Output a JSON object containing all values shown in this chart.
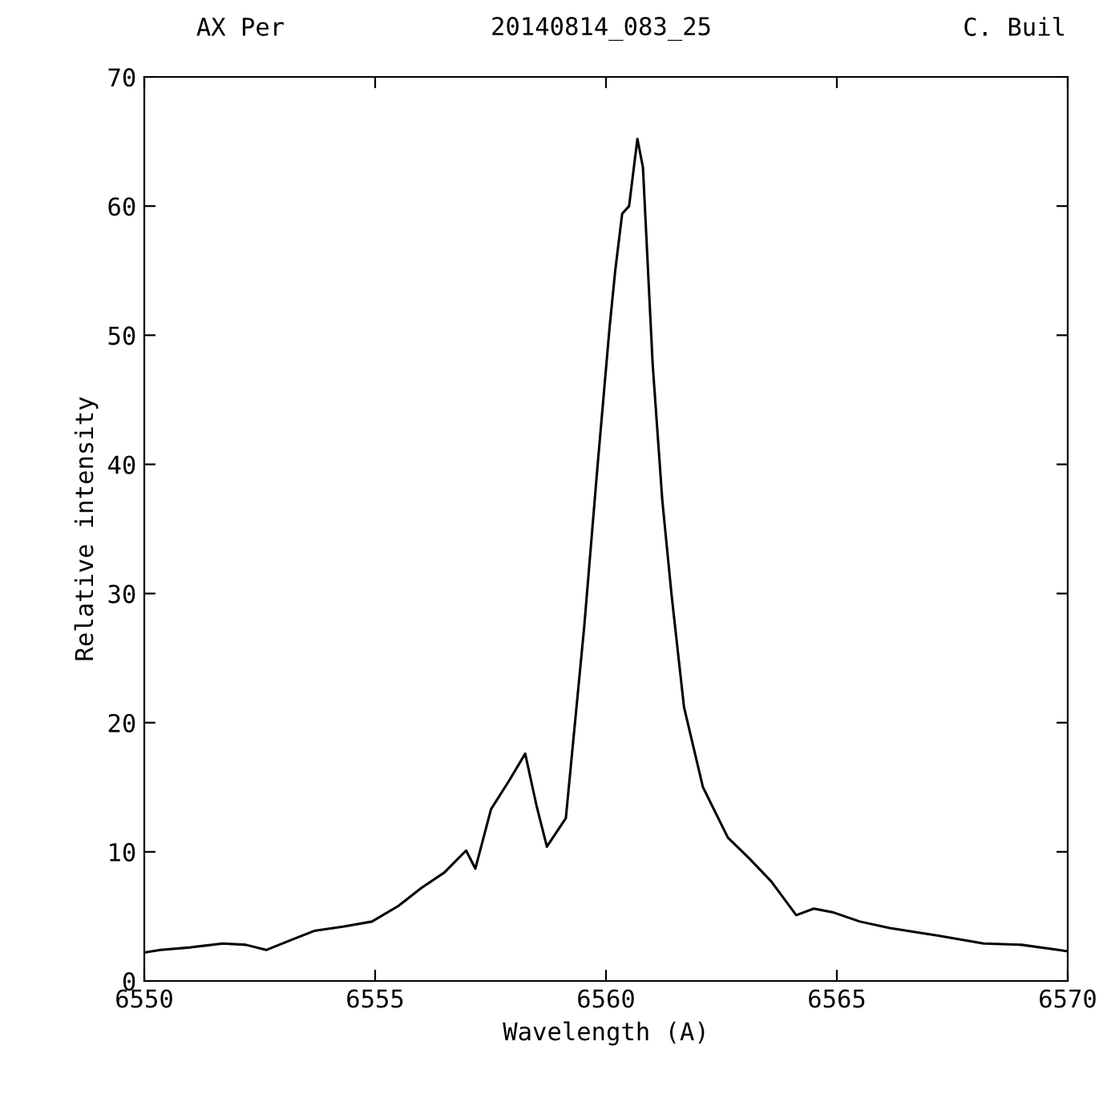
{
  "chart_data": {
    "type": "line",
    "title": "AX Per",
    "subtitle": "20140814_083_25",
    "annotations": [
      "C. Buil"
    ],
    "xlabel": "Wavelength (A)",
    "ylabel": "Relative intensity",
    "xlim": [
      6550,
      6570
    ],
    "xticks": [
      6550,
      6555,
      6560,
      6565,
      6570
    ],
    "ylim": [
      0,
      70
    ],
    "yticks": [
      0,
      10,
      20,
      30,
      40,
      50,
      60,
      70
    ],
    "grid": false,
    "legend": false,
    "series": [
      {
        "color": "#000000",
        "x": [
          6550.0,
          6550.35,
          6551.0,
          6551.7,
          6552.2,
          6552.64,
          6553.2,
          6553.7,
          6554.3,
          6554.93,
          6555.5,
          6556.0,
          6556.5,
          6556.97,
          6557.17,
          6557.51,
          6557.9,
          6558.25,
          6558.5,
          6558.72,
          6559.13,
          6559.53,
          6559.81,
          6560.08,
          6560.2,
          6560.35,
          6560.5,
          6560.68,
          6560.8,
          6561.01,
          6561.22,
          6561.42,
          6561.69,
          6562.1,
          6562.64,
          6563.1,
          6563.58,
          6564.12,
          6564.5,
          6564.93,
          6565.5,
          6566.15,
          6567.2,
          6568.18,
          6569.0,
          6569.8,
          6570.0
        ],
        "values": [
          2.2,
          2.4,
          2.6,
          2.9,
          2.8,
          2.4,
          3.2,
          3.9,
          4.2,
          4.6,
          5.8,
          7.2,
          8.4,
          10.1,
          8.7,
          13.3,
          15.5,
          17.6,
          13.5,
          10.4,
          12.6,
          27.5,
          39.6,
          50.7,
          55,
          59.4,
          60,
          65.2,
          63,
          47.8,
          37.2,
          29.9,
          21.2,
          15.0,
          11.1,
          9.5,
          7.7,
          5.1,
          5.6,
          5.3,
          4.6,
          4.1,
          3.5,
          2.9,
          2.8,
          2.4,
          2.3
        ]
      }
    ]
  }
}
